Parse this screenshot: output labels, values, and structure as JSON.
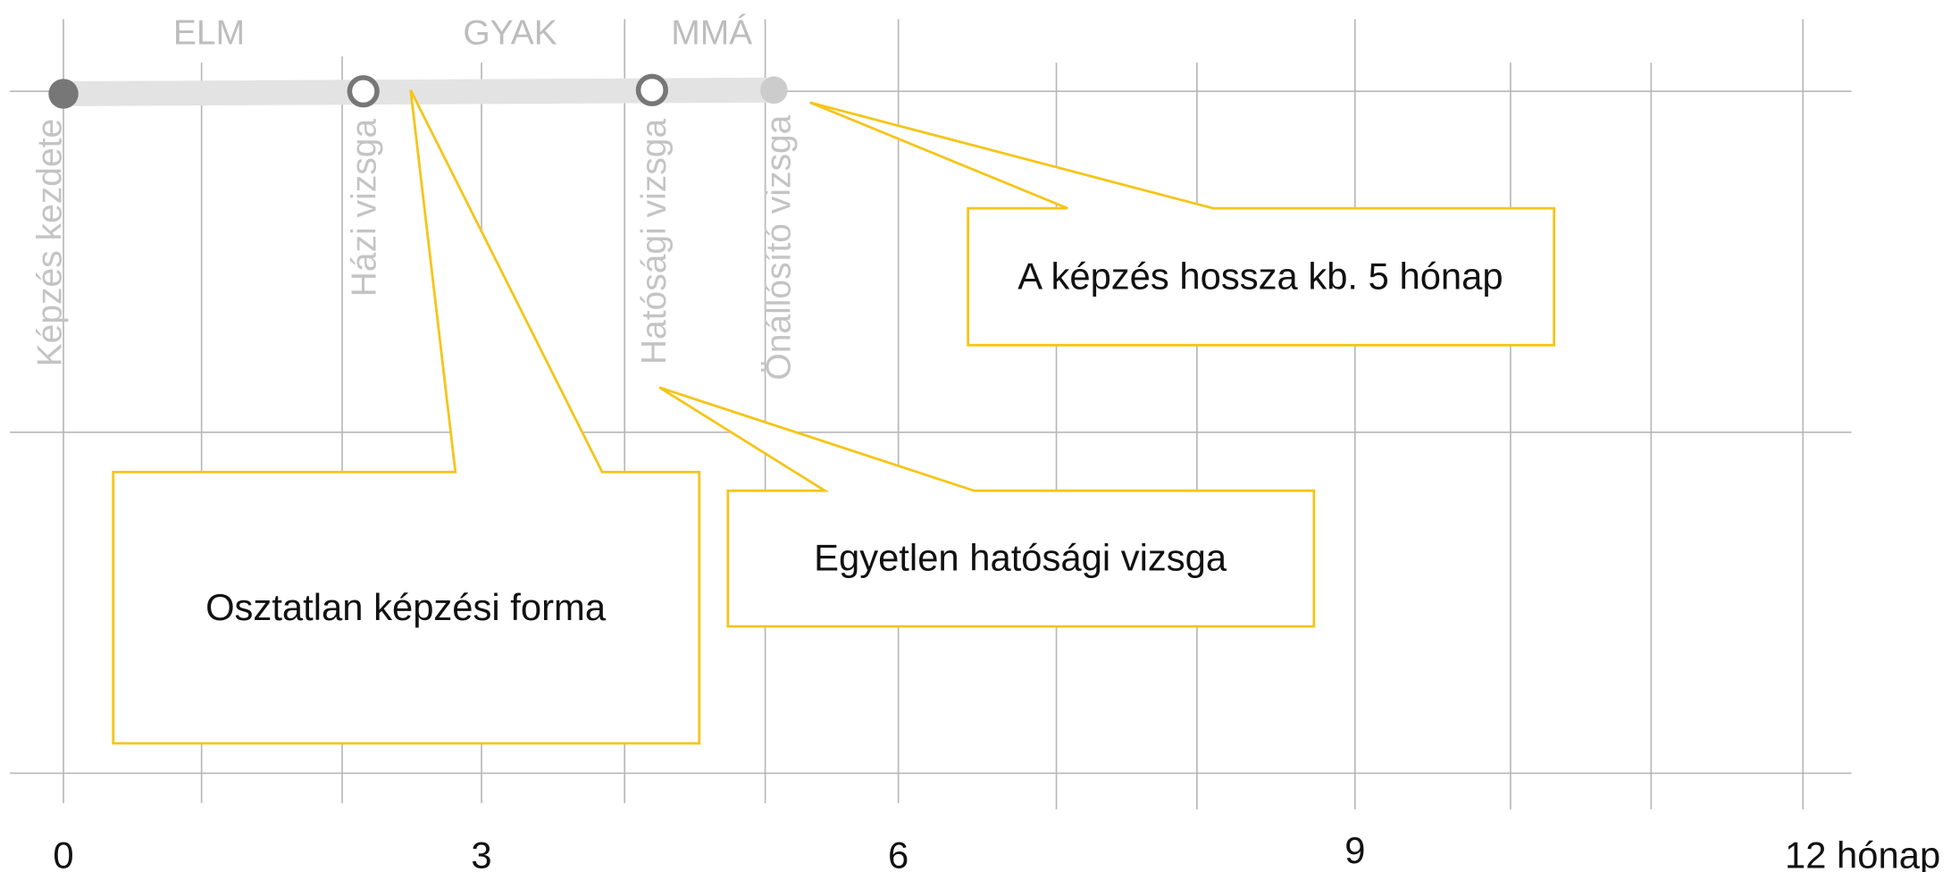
{
  "phases": [
    "ELM",
    "GYAK",
    "MMÁ"
  ],
  "milestones": [
    "Képzés kezdete",
    "Házi vizsga",
    "Hatósági vizsga",
    "Önállósító vizsga"
  ],
  "callouts": [
    "Osztatlan képzési forma",
    "Egyetlen hatósági vizsga",
    "A képzés hossza kb. 5 hónap"
  ],
  "axis": {
    "labels": [
      "0",
      "3",
      "6",
      "9",
      "12 hónap"
    ]
  }
}
